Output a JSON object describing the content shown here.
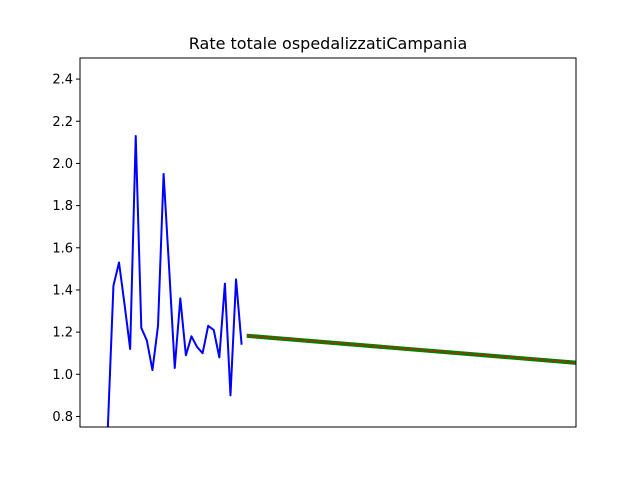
{
  "chart_data": {
    "type": "line",
    "title": "Rate totale ospedalizzatiCampania",
    "xlabel": "",
    "ylabel": "",
    "xlim": [
      0,
      89
    ],
    "ylim": [
      0.75,
      2.5
    ],
    "yticks": [
      0.8,
      1.0,
      1.2,
      1.4,
      1.6,
      1.8,
      2.0,
      2.2,
      2.4
    ],
    "ytick_labels": [
      "0.8",
      "1.0",
      "1.2",
      "1.4",
      "1.6",
      "1.8",
      "2.0",
      "2.2",
      "2.4"
    ],
    "grid": false,
    "series": [
      {
        "color": "#0000ff",
        "x": [
          5,
          6,
          7,
          8,
          9,
          10,
          11,
          12,
          13,
          14,
          15,
          16,
          17,
          18,
          19,
          20,
          21,
          22,
          23,
          24,
          25,
          26,
          27,
          28,
          29
        ],
        "y": [
          0.75,
          1.42,
          1.53,
          1.33,
          1.12,
          2.13,
          1.22,
          1.16,
          1.02,
          1.23,
          1.95,
          1.5,
          1.03,
          1.36,
          1.09,
          1.18,
          1.13,
          1.1,
          1.23,
          1.21,
          1.08,
          1.43,
          0.9,
          1.45,
          1.14
        ]
      },
      {
        "color": "#008000",
        "band": true,
        "x": [
          30,
          90
        ],
        "y_upper": [
          1.19,
          1.06
        ],
        "y_lower": [
          1.175,
          1.045
        ]
      },
      {
        "color": "#ff0000",
        "style": "dashed",
        "x": [
          30,
          90
        ],
        "y": [
          1.183,
          1.053
        ]
      }
    ]
  }
}
